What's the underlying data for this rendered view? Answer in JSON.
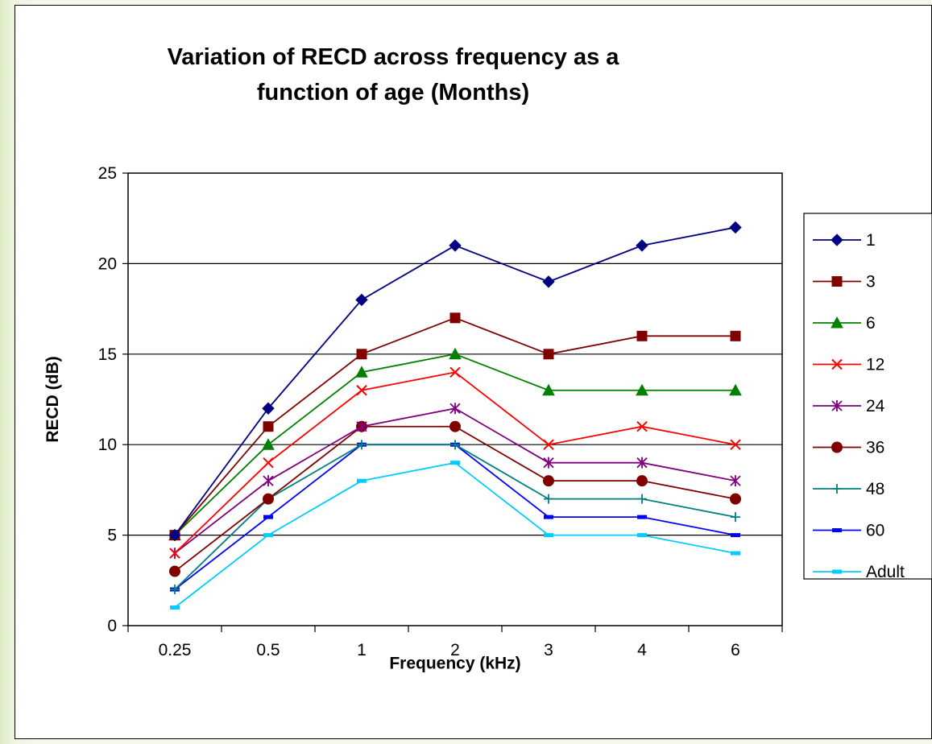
{
  "chart_data": {
    "type": "line",
    "title_lines": [
      "Variation of RECD across frequency as a",
      "function of age (Months)"
    ],
    "xlabel": "Frequency (kHz)",
    "ylabel": "RECD (dB)",
    "categories": [
      "0.25",
      "0.5",
      "1",
      "2",
      "3",
      "4",
      "6"
    ],
    "ylim": [
      0,
      25
    ],
    "yticks": [
      "0",
      "5",
      "10",
      "15",
      "20",
      "25"
    ],
    "grid": "horizontal major gridlines",
    "legend_position": "right",
    "series": [
      {
        "name": "1",
        "color": "#000080",
        "marker": "diamond",
        "values": [
          5,
          12,
          18,
          21,
          19,
          21,
          22
        ]
      },
      {
        "name": "3",
        "color": "#800000",
        "marker": "square",
        "values": [
          5,
          11,
          15,
          17,
          15,
          16,
          16
        ]
      },
      {
        "name": "6",
        "color": "#008000",
        "marker": "triangle",
        "values": [
          5,
          10,
          14,
          15,
          13,
          13,
          13
        ]
      },
      {
        "name": "12",
        "color": "#ff0000",
        "marker": "x",
        "values": [
          4,
          9,
          13,
          14,
          10,
          11,
          10
        ]
      },
      {
        "name": "24",
        "color": "#800080",
        "marker": "star",
        "values": [
          4,
          8,
          11,
          12,
          9,
          9,
          8
        ]
      },
      {
        "name": "36",
        "color": "#800000",
        "marker": "circle",
        "values": [
          3,
          7,
          11,
          11,
          8,
          8,
          7
        ]
      },
      {
        "name": "48",
        "color": "#008080",
        "marker": "plus",
        "values": [
          2,
          7,
          10,
          10,
          7,
          7,
          6
        ]
      },
      {
        "name": "60",
        "color": "#0000ff",
        "marker": "dash",
        "values": [
          2,
          6,
          10,
          10,
          6,
          6,
          5
        ]
      },
      {
        "name": "Adult",
        "color": "#00ccff",
        "marker": "dash",
        "values": [
          1,
          5,
          8,
          9,
          5,
          5,
          4
        ]
      }
    ]
  }
}
